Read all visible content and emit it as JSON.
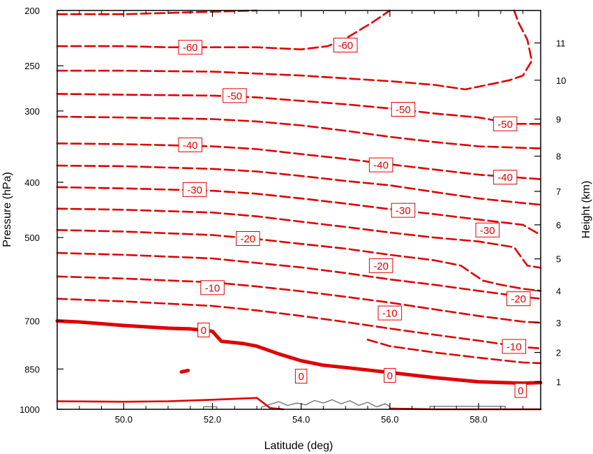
{
  "chart_data": {
    "type": "line",
    "title": "",
    "xlabel": "Latitude (deg)",
    "ylabel": "Pressure (hPa)",
    "y2label": "Height (km)",
    "xlim": [
      48.5,
      59.4
    ],
    "ylim": [
      1000,
      200
    ],
    "y_scale": "log",
    "x_ticks": [
      "50.0",
      "52.0",
      "54.0",
      "56.0",
      "58.0"
    ],
    "x_tick_values": [
      50,
      52,
      54,
      56,
      58
    ],
    "y_ticks": [
      "200",
      "250",
      "300",
      "400",
      "500",
      "700",
      "850",
      "1000"
    ],
    "y_tick_values": [
      200,
      250,
      300,
      400,
      500,
      700,
      850,
      1000
    ],
    "y2_ticks": [
      "1",
      "2",
      "3",
      "4",
      "5",
      "6",
      "7",
      "8",
      "9",
      "10",
      "11"
    ],
    "y2_tick_pressures": [
      895,
      795,
      705,
      620,
      545,
      475,
      415,
      360,
      310,
      265,
      228
    ],
    "grid": false,
    "colors": {
      "contour": "#e00000",
      "terrain": "#444444",
      "axis": "#000000"
    },
    "contours": [
      {
        "value": "-60",
        "dashed": true,
        "points": [
          [
            48.5,
            203
          ],
          [
            50,
            203
          ],
          [
            51,
            202
          ],
          [
            52,
            201
          ],
          [
            53,
            200
          ]
        ]
      },
      {
        "value": "-60",
        "dashed": true,
        "points": [
          [
            48.5,
            231
          ],
          [
            50,
            231
          ],
          [
            51,
            232
          ],
          [
            52,
            232
          ],
          [
            53,
            232
          ],
          [
            54,
            234
          ],
          [
            54.6,
            231
          ],
          [
            55,
            224
          ],
          [
            55.6,
            210
          ],
          [
            56,
            200
          ]
        ]
      },
      {
        "value": "",
        "dashed": true,
        "points": [
          [
            48.5,
            255
          ],
          [
            50,
            255
          ],
          [
            52,
            256
          ],
          [
            53,
            258
          ],
          [
            54,
            260
          ],
          [
            55,
            263
          ],
          [
            56,
            266
          ],
          [
            57,
            270
          ],
          [
            57.7,
            275
          ],
          [
            58.2,
            270
          ],
          [
            58.7,
            265
          ],
          [
            59,
            260
          ],
          [
            59.2,
            245
          ],
          [
            59.1,
            225
          ],
          [
            58.9,
            210
          ],
          [
            58.8,
            200
          ]
        ]
      },
      {
        "value": "-50",
        "dashed": true,
        "points": [
          [
            48.5,
            280
          ],
          [
            50,
            281
          ],
          [
            52,
            282
          ],
          [
            53,
            284
          ],
          [
            54,
            288
          ],
          [
            55,
            292
          ],
          [
            56,
            297
          ],
          [
            57,
            303
          ],
          [
            58,
            308
          ],
          [
            58.8,
            316
          ],
          [
            59.4,
            316
          ]
        ]
      },
      {
        "value": "-50",
        "dashed": true,
        "points": [
          [
            48.5,
            307
          ],
          [
            50,
            308
          ],
          [
            52,
            310
          ],
          [
            53,
            313
          ],
          [
            54,
            318
          ],
          [
            55,
            325
          ],
          [
            56,
            333
          ],
          [
            57,
            340
          ],
          [
            58,
            346
          ],
          [
            59.4,
            349
          ]
        ]
      },
      {
        "value": "-40",
        "dashed": true,
        "points": [
          [
            48.5,
            342
          ],
          [
            50,
            343
          ],
          [
            52,
            346
          ],
          [
            53,
            350
          ],
          [
            54,
            357
          ],
          [
            55,
            364
          ],
          [
            56,
            372
          ],
          [
            57,
            380
          ],
          [
            58,
            388
          ],
          [
            59,
            393
          ],
          [
            59.4,
            395
          ]
        ]
      },
      {
        "value": "-40",
        "dashed": true,
        "points": [
          [
            48.5,
            374
          ],
          [
            50,
            375
          ],
          [
            52,
            379
          ],
          [
            53,
            383
          ],
          [
            54,
            390
          ],
          [
            55,
            398
          ],
          [
            56,
            405
          ],
          [
            57,
            416
          ],
          [
            58,
            427
          ],
          [
            59,
            435
          ],
          [
            59.4,
            438
          ]
        ]
      },
      {
        "value": "-30",
        "dashed": true,
        "points": [
          [
            48.5,
            408
          ],
          [
            50,
            410
          ],
          [
            52,
            414
          ],
          [
            53,
            419
          ],
          [
            54,
            427
          ],
          [
            55,
            436
          ],
          [
            56,
            446
          ],
          [
            57,
            455
          ],
          [
            58,
            465
          ],
          [
            59,
            475
          ],
          [
            59.4,
            495
          ]
        ]
      },
      {
        "value": "-30",
        "dashed": true,
        "points": [
          [
            48.5,
            445
          ],
          [
            50,
            447
          ],
          [
            52,
            452
          ],
          [
            53,
            459
          ],
          [
            54,
            469
          ],
          [
            55,
            479
          ],
          [
            56,
            490
          ],
          [
            57,
            500
          ],
          [
            58,
            508
          ],
          [
            58.8,
            520
          ],
          [
            59.1,
            560
          ],
          [
            59.4,
            565
          ]
        ]
      },
      {
        "value": "-20",
        "dashed": true,
        "points": [
          [
            48.5,
            485
          ],
          [
            50,
            488
          ],
          [
            52,
            495
          ],
          [
            53,
            503
          ],
          [
            54,
            513
          ],
          [
            55,
            523
          ],
          [
            56,
            536
          ],
          [
            57,
            548
          ],
          [
            57.6,
            560
          ],
          [
            58.1,
            595
          ],
          [
            58.5,
            605
          ],
          [
            59,
            615
          ],
          [
            59.4,
            620
          ]
        ]
      },
      {
        "value": "-20",
        "dashed": true,
        "points": [
          [
            48.5,
            532
          ],
          [
            50,
            536
          ],
          [
            52,
            544
          ],
          [
            53,
            554
          ],
          [
            54,
            564
          ],
          [
            55,
            577
          ],
          [
            56,
            592
          ],
          [
            57,
            605
          ],
          [
            58,
            620
          ],
          [
            59,
            635
          ],
          [
            59.4,
            640
          ]
        ]
      },
      {
        "value": "-10",
        "dashed": true,
        "points": [
          [
            48.5,
            585
          ],
          [
            50,
            590
          ],
          [
            52,
            599
          ],
          [
            53,
            609
          ],
          [
            54,
            621
          ],
          [
            55,
            635
          ],
          [
            56,
            650
          ],
          [
            57,
            668
          ],
          [
            58,
            686
          ],
          [
            59,
            702
          ],
          [
            59.4,
            705
          ]
        ]
      },
      {
        "value": "-10",
        "dashed": true,
        "points": [
          [
            48.5,
            640
          ],
          [
            50,
            647
          ],
          [
            52,
            659
          ],
          [
            53,
            671
          ],
          [
            54,
            686
          ],
          [
            55,
            703
          ],
          [
            56,
            722
          ],
          [
            57,
            740
          ],
          [
            58,
            758
          ],
          [
            59,
            778
          ],
          [
            59.4,
            782
          ]
        ]
      },
      {
        "value": "",
        "dashed": true,
        "points": [
          [
            55.5,
            755
          ],
          [
            56,
            775
          ],
          [
            57,
            795
          ],
          [
            58,
            812
          ],
          [
            59,
            828
          ],
          [
            59.4,
            830
          ]
        ]
      },
      {
        "value": "0",
        "dashed": false,
        "bold": true,
        "points": [
          [
            48.5,
            700
          ],
          [
            49,
            703
          ],
          [
            50,
            713
          ],
          [
            51,
            721
          ],
          [
            51.5,
            723
          ],
          [
            52,
            730
          ],
          [
            52.2,
            760
          ],
          [
            52.7,
            767
          ],
          [
            53,
            775
          ],
          [
            53.5,
            800
          ],
          [
            54,
            822
          ],
          [
            54.5,
            837
          ],
          [
            55,
            845
          ],
          [
            56,
            862
          ],
          [
            57,
            880
          ],
          [
            58,
            895
          ],
          [
            59,
            900
          ],
          [
            59.4,
            898
          ]
        ]
      },
      {
        "value": "",
        "dashed": false,
        "bold": true,
        "points": [
          [
            51.3,
            860
          ],
          [
            51.45,
            855
          ]
        ]
      },
      {
        "value": "",
        "dashed": false,
        "bold": false,
        "points": [
          [
            48.5,
            968
          ],
          [
            50,
            970
          ],
          [
            51,
            968
          ],
          [
            52,
            962
          ],
          [
            53,
            955
          ],
          [
            53.3,
            995
          ],
          [
            53.6,
            1000
          ]
        ]
      },
      {
        "value": "",
        "dashed": false,
        "bold": false,
        "points": [
          [
            56,
            997
          ],
          [
            57,
            1000
          ],
          [
            59.4,
            1000
          ]
        ]
      }
    ],
    "labels": [
      {
        "text": "-60",
        "lat": 51.5,
        "p": 232
      },
      {
        "text": "-60",
        "lat": 55.0,
        "p": 230
      },
      {
        "text": "-50",
        "lat": 52.5,
        "p": 282
      },
      {
        "text": "-50",
        "lat": 56.3,
        "p": 298
      },
      {
        "text": "-50",
        "lat": 58.6,
        "p": 316
      },
      {
        "text": "-40",
        "lat": 51.5,
        "p": 344
      },
      {
        "text": "-40",
        "lat": 55.8,
        "p": 373
      },
      {
        "text": "-40",
        "lat": 58.6,
        "p": 392
      },
      {
        "text": "-30",
        "lat": 51.6,
        "p": 412
      },
      {
        "text": "-30",
        "lat": 56.3,
        "p": 448
      },
      {
        "text": "-30",
        "lat": 58.2,
        "p": 485
      },
      {
        "text": "-20",
        "lat": 52.8,
        "p": 502
      },
      {
        "text": "-20",
        "lat": 55.8,
        "p": 560
      },
      {
        "text": "-20",
        "lat": 58.9,
        "p": 640
      },
      {
        "text": "-10",
        "lat": 52.0,
        "p": 612
      },
      {
        "text": "-10",
        "lat": 56.0,
        "p": 678
      },
      {
        "text": "-10",
        "lat": 58.8,
        "p": 776
      },
      {
        "text": "0",
        "lat": 51.8,
        "p": 726
      },
      {
        "text": "0",
        "lat": 54.0,
        "p": 875
      },
      {
        "text": "0",
        "lat": 56.0,
        "p": 872
      },
      {
        "text": "0",
        "lat": 58.95,
        "p": 927
      }
    ],
    "terrain": [
      [
        51.8,
        1000
      ],
      [
        51.8,
        990
      ],
      [
        52.1,
        990
      ],
      [
        52.1,
        1000
      ],
      [
        53.1,
        1000
      ],
      [
        53.1,
        992
      ],
      [
        53.3,
        980
      ],
      [
        53.5,
        970
      ],
      [
        53.7,
        985
      ],
      [
        53.9,
        975
      ],
      [
        54.1,
        982
      ],
      [
        54.3,
        965
      ],
      [
        54.5,
        975
      ],
      [
        54.7,
        962
      ],
      [
        54.9,
        978
      ],
      [
        55.1,
        966
      ],
      [
        55.3,
        984
      ],
      [
        55.5,
        972
      ],
      [
        55.7,
        990
      ],
      [
        55.9,
        978
      ],
      [
        56.0,
        990
      ],
      [
        56.0,
        1000
      ],
      [
        56.9,
        1000
      ],
      [
        56.9,
        988
      ],
      [
        58.6,
        988
      ],
      [
        58.6,
        1000
      ]
    ]
  }
}
